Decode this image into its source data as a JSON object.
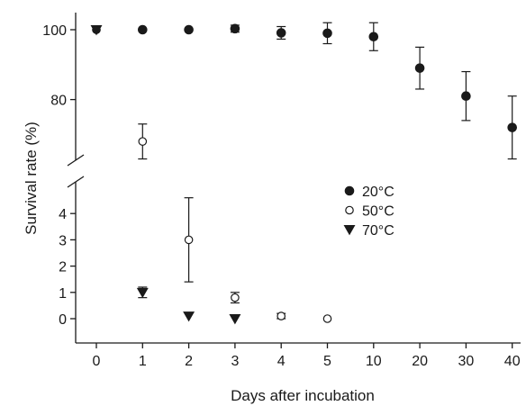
{
  "chart_data": {
    "type": "scatter",
    "xlabel": "Days after incubation",
    "ylabel": "Survival rate (%)",
    "categories": [
      "0",
      "1",
      "2",
      "3",
      "4",
      "5",
      "10",
      "20",
      "30",
      "40"
    ],
    "y_axis": {
      "broken": true,
      "lower_segment": {
        "range": [
          0,
          4
        ],
        "ticks": [
          "0",
          "1",
          "2",
          "3",
          "4"
        ]
      },
      "upper_segment": {
        "range": [
          80,
          100
        ],
        "ticks": [
          "80",
          "100"
        ]
      }
    },
    "legend_position": "center-right",
    "grid": false,
    "series": [
      {
        "name": "20°C",
        "marker": "filled-circle",
        "color": "#1a1a1a",
        "values": [
          100,
          100,
          100,
          100.3,
          99.1,
          99.0,
          98.0,
          89.0,
          81.0,
          72.0
        ],
        "errors": [
          0,
          0,
          0,
          1.0,
          1.8,
          3.0,
          4.0,
          6.0,
          7.0,
          9.0
        ]
      },
      {
        "name": "50°C",
        "marker": "open-circle",
        "color": "#1a1a1a",
        "values": [
          100,
          68.0,
          3.0,
          0.8,
          0.1,
          0.0,
          null,
          null,
          null,
          null
        ],
        "errors": [
          0,
          5.0,
          1.6,
          0.2,
          0.1,
          0,
          null,
          null,
          null,
          null
        ]
      },
      {
        "name": "70°C",
        "marker": "filled-triangle-down",
        "color": "#1a1a1a",
        "values": [
          100,
          1.0,
          0.1,
          0.0,
          null,
          null,
          null,
          null,
          null,
          null
        ],
        "errors": [
          0,
          0.2,
          0,
          0,
          null,
          null,
          null,
          null,
          null,
          null
        ]
      }
    ]
  }
}
